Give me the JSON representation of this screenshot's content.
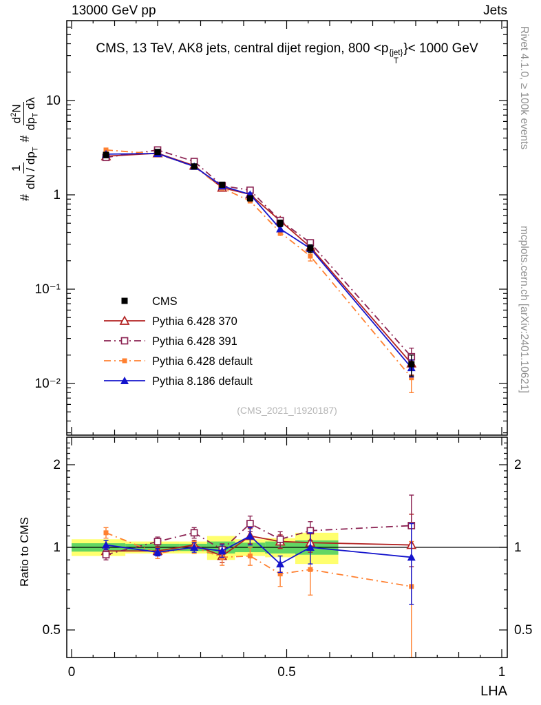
{
  "header": {
    "left": "13000 GeV pp",
    "right": "Jets"
  },
  "title": {
    "pre": "CMS, 13 TeV, AK8 jets, central dijet region, 800 <p",
    "sup": "{jet}",
    "sub": "T",
    "post": "}< 1000 GeV"
  },
  "ylabel": {
    "hash1": "#",
    "f1_num": "1",
    "f1_den": "dN / dp",
    "f1_den_sub": "T",
    "hash2": "#",
    "f2_num_a": "d",
    "f2_num_sup": "2",
    "f2_num_b": "N",
    "f2_den_a": "dp",
    "f2_den_sub": "T",
    "f2_den_b": " dλ"
  },
  "side_notes": {
    "top": "Rivet 4.1.0, ≥ 100k events",
    "bottom": "mcplots.cern.ch [arXiv:2401.10621]"
  },
  "watermark": "(CMS_2021_I1920187)",
  "axes": {
    "x": {
      "label": "LHA",
      "range": [
        0,
        1
      ],
      "ticks": [
        {
          "v": 0,
          "label": "0"
        },
        {
          "v": 0.5,
          "label": "0.5"
        },
        {
          "v": 1,
          "label": "1"
        }
      ]
    },
    "y_main": {
      "scale": "log",
      "ticks": [
        {
          "v": 10,
          "label": "10"
        },
        {
          "v": 1,
          "label": "1"
        },
        {
          "v": 0.1,
          "label": "10⁻¹"
        },
        {
          "v": 0.01,
          "label": "10⁻²"
        }
      ]
    },
    "y_ratio": {
      "scale": "log",
      "label": "Ratio to CMS",
      "ticks": [
        {
          "v": 2,
          "label": "2"
        },
        {
          "v": 1,
          "label": "1"
        },
        {
          "v": 0.5,
          "label": "0.5"
        }
      ]
    }
  },
  "chart_data": {
    "type": "line",
    "title": "CMS, 13 TeV, AK8 jets, central dijet region, 800 < pT{jet} < 1000 GeV",
    "xlabel": "LHA",
    "ylabel": "1/(dN/dpT) d²N/(dpT dλ)",
    "ratio_ylabel": "Ratio to CMS",
    "xlim": [
      0,
      1
    ],
    "main_ylim": [
      0.003,
      70
    ],
    "ratio_ylim": [
      0.4,
      2.5
    ],
    "legend_position": "middle-left",
    "grid": false,
    "x": [
      0.08,
      0.2,
      0.285,
      0.35,
      0.415,
      0.485,
      0.555,
      0.79
    ],
    "colors": {
      "band_yellow": "#ffff6e",
      "band_green": "#63d663"
    },
    "series": [
      {
        "id": "cms",
        "name": "CMS",
        "color": "#000000",
        "marker": "square-filled",
        "msize": 4.5,
        "line": "none",
        "values": [
          2.65,
          2.85,
          2.0,
          1.28,
          0.92,
          0.5,
          0.27,
          0.016
        ],
        "errors": [
          0.18,
          0.15,
          0.12,
          0.08,
          0.06,
          0.04,
          0.025,
          0.004
        ],
        "ratio": null,
        "ratio_err": null
      },
      {
        "id": "py6-370",
        "name": "Pythia 6.428 370",
        "color": "#b22222",
        "marker": "triangle-open",
        "msize": 5,
        "line": "solid",
        "values": [
          2.57,
          2.76,
          2.04,
          1.19,
          1.01,
          0.53,
          0.28,
          0.0163
        ],
        "errors": [
          0.09,
          0.08,
          0.06,
          0.04,
          0.04,
          0.025,
          0.02,
          0.004
        ],
        "ratio": [
          0.97,
          0.97,
          1.02,
          0.93,
          1.1,
          1.05,
          1.04,
          1.02
        ],
        "ratio_err": [
          0.04,
          0.03,
          0.04,
          0.05,
          0.07,
          0.06,
          0.08,
          0.3
        ]
      },
      {
        "id": "py6-391",
        "name": "Pythia 6.428 391",
        "color": "#8b2252",
        "marker": "square-open",
        "msize": 4.5,
        "line": "dashdot",
        "values": [
          2.49,
          2.99,
          2.26,
          1.25,
          1.12,
          0.535,
          0.31,
          0.0192
        ],
        "errors": [
          0.09,
          0.08,
          0.06,
          0.04,
          0.04,
          0.025,
          0.02,
          0.0045
        ],
        "ratio": [
          0.94,
          1.05,
          1.13,
          0.98,
          1.22,
          1.07,
          1.15,
          1.2
        ],
        "ratio_err": [
          0.04,
          0.04,
          0.05,
          0.05,
          0.08,
          0.07,
          0.09,
          0.35
        ]
      },
      {
        "id": "py6-default",
        "name": "Pythia 6.428 default",
        "color": "#ff8030",
        "marker": "square-filled",
        "msize": 3.5,
        "line": "dashdot",
        "values": [
          2.99,
          2.71,
          2.0,
          1.18,
          0.86,
          0.4,
          0.224,
          0.0115
        ],
        "errors": [
          0.12,
          0.09,
          0.06,
          0.05,
          0.04,
          0.03,
          0.025,
          0.0035
        ],
        "ratio": [
          1.13,
          0.95,
          1.0,
          0.92,
          0.93,
          0.8,
          0.83,
          0.72
        ],
        "ratio_err": [
          0.05,
          0.04,
          0.05,
          0.06,
          0.07,
          0.08,
          0.16,
          0.33
        ]
      },
      {
        "id": "py8-default",
        "name": "Pythia 8.186 default",
        "color": "#1414cc",
        "marker": "triangle-filled",
        "msize": 5,
        "line": "solid",
        "values": [
          2.7,
          2.74,
          2.0,
          1.24,
          1.01,
          0.435,
          0.27,
          0.0147
        ],
        "errors": [
          0.09,
          0.08,
          0.06,
          0.04,
          0.04,
          0.025,
          0.02,
          0.003
        ],
        "ratio": [
          1.02,
          0.96,
          1.0,
          0.97,
          1.1,
          0.87,
          1.0,
          0.92
        ],
        "ratio_err": [
          0.04,
          0.03,
          0.04,
          0.05,
          0.08,
          0.06,
          0.13,
          0.3
        ]
      }
    ],
    "bands": [
      {
        "x": [
          0.0,
          0.125
        ],
        "yellow": [
          0.93,
          1.07
        ],
        "green": [
          0.965,
          1.035
        ]
      },
      {
        "x": [
          0.125,
          0.25
        ],
        "yellow": [
          0.95,
          1.05
        ],
        "green": [
          0.97,
          1.03
        ]
      },
      {
        "x": [
          0.25,
          0.315
        ],
        "yellow": [
          0.95,
          1.05
        ],
        "green": [
          0.97,
          1.03
        ]
      },
      {
        "x": [
          0.315,
          0.38
        ],
        "yellow": [
          0.9,
          1.1
        ],
        "green": [
          0.95,
          1.05
        ]
      },
      {
        "x": [
          0.38,
          0.45
        ],
        "yellow": [
          0.93,
          1.07
        ],
        "green": [
          0.96,
          1.04
        ]
      },
      {
        "x": [
          0.45,
          0.52
        ],
        "yellow": [
          0.92,
          1.08
        ],
        "green": [
          0.95,
          1.05
        ]
      },
      {
        "x": [
          0.52,
          0.62
        ],
        "yellow": [
          0.87,
          1.13
        ],
        "green": [
          0.94,
          1.06
        ]
      }
    ]
  }
}
